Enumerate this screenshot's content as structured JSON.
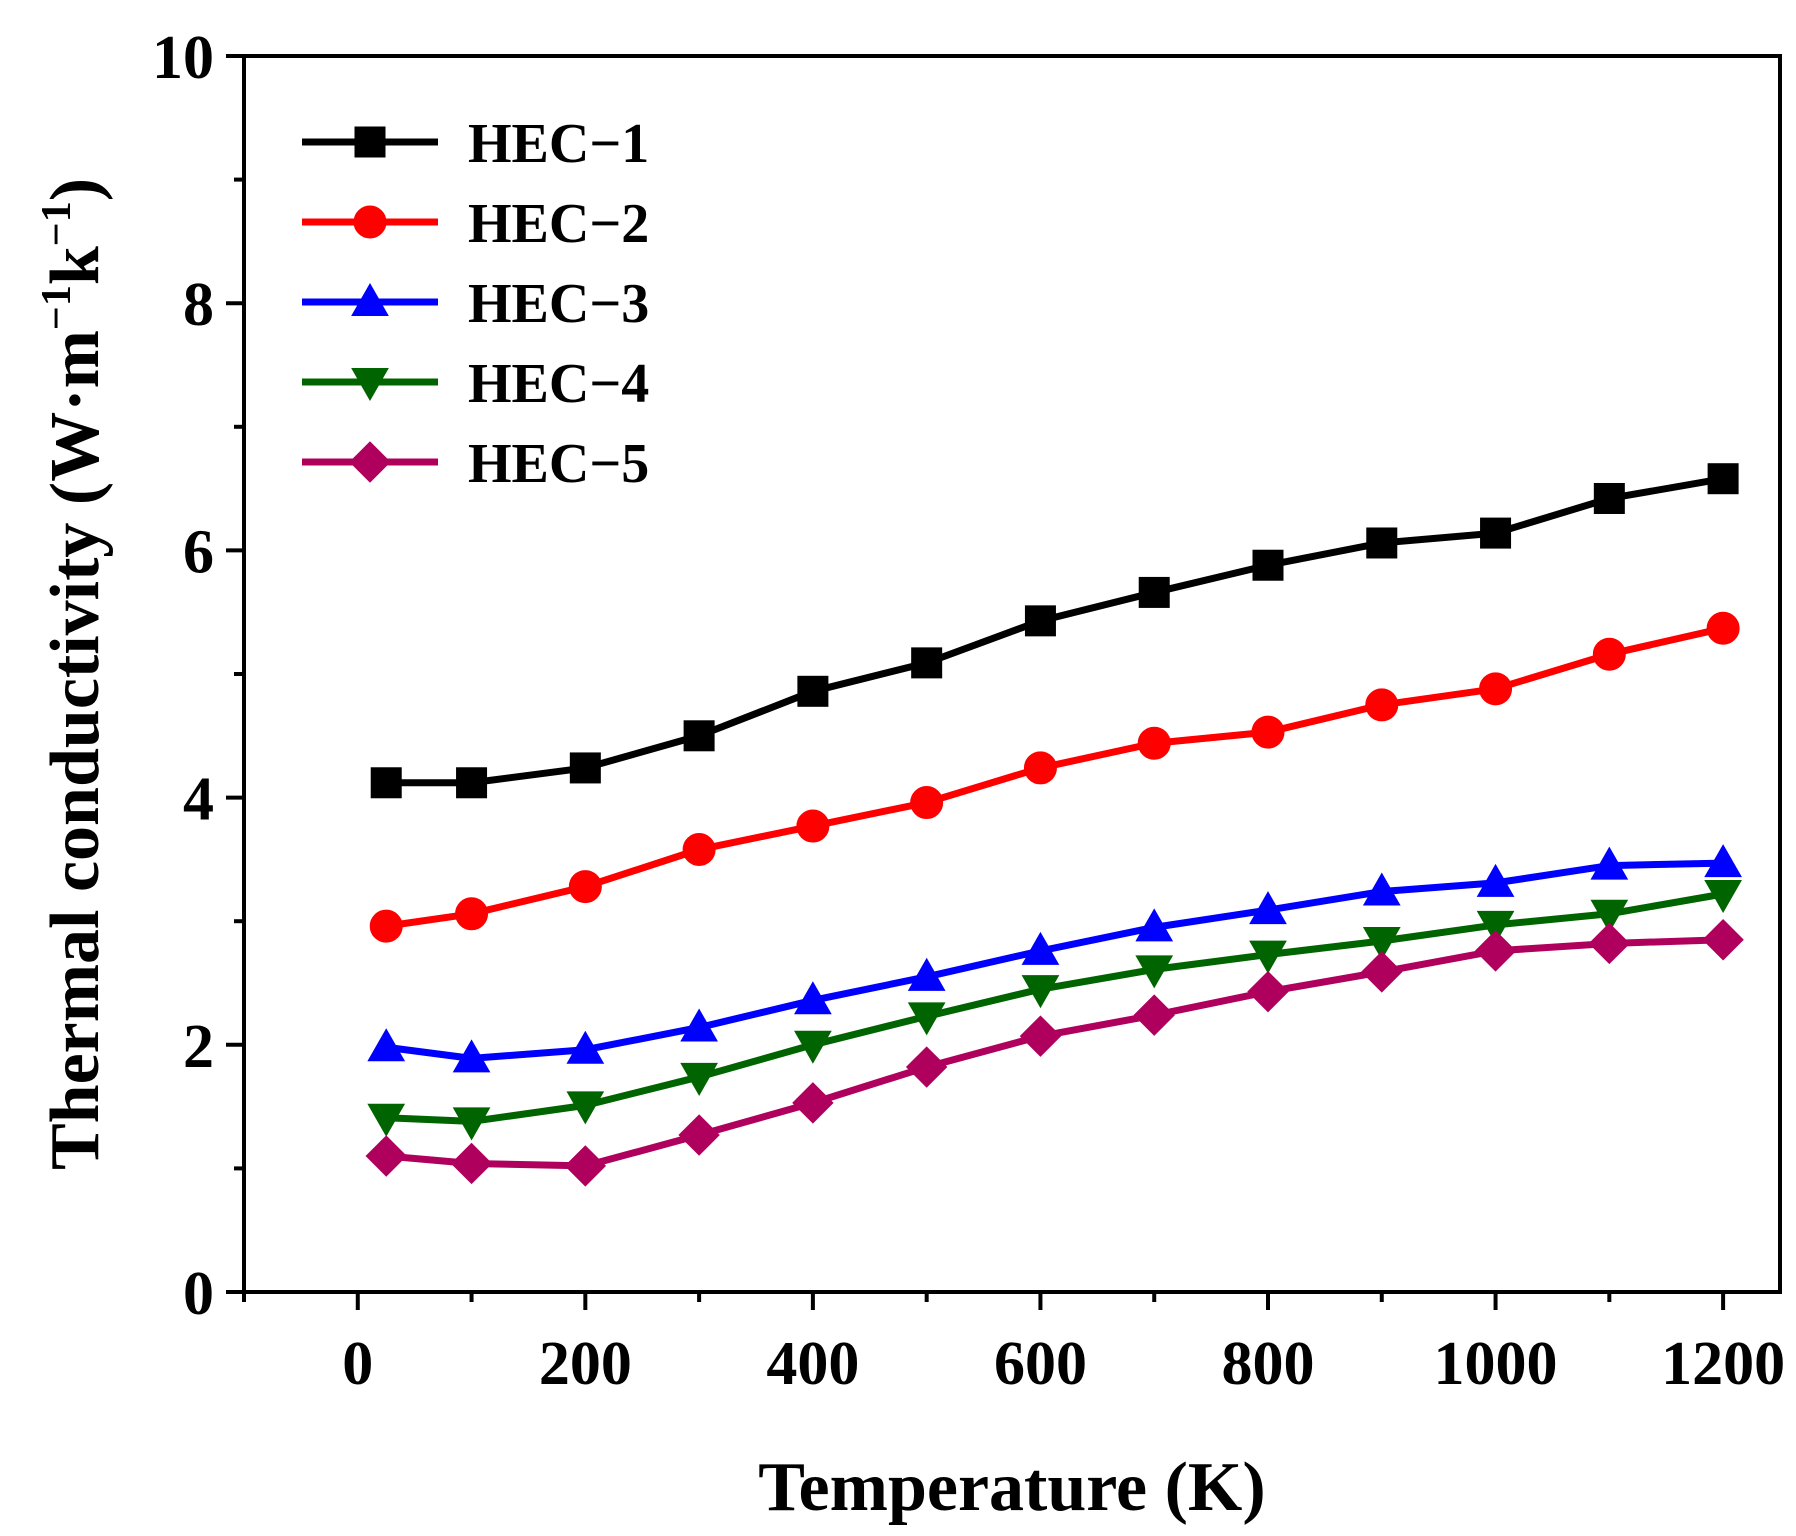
{
  "chart_data": {
    "type": "line",
    "title": "",
    "xlabel": "Temperature (K)",
    "ylabel": {
      "main": "Thermal conductivity (W·m",
      "exp1": "−1",
      "mid": "k",
      "exp2": "−1",
      "close": ")"
    },
    "xlim": [
      -100,
      1250
    ],
    "ylim": [
      0,
      10
    ],
    "xticks": [
      0,
      200,
      400,
      600,
      800,
      1000,
      1200
    ],
    "yticks": [
      0,
      2,
      4,
      6,
      8,
      10
    ],
    "x": [
      25,
      100,
      200,
      300,
      400,
      500,
      600,
      700,
      800,
      900,
      1000,
      1100,
      1200
    ],
    "legend_position": "top-left",
    "series": [
      {
        "name": "HEC−1",
        "color": "#000000",
        "marker": "square",
        "values": [
          4.12,
          4.12,
          4.24,
          4.5,
          4.86,
          5.09,
          5.43,
          5.66,
          5.88,
          6.06,
          6.14,
          6.42,
          6.58
        ]
      },
      {
        "name": "HEC−2",
        "color": "#ff0000",
        "marker": "circle",
        "values": [
          2.96,
          3.06,
          3.28,
          3.58,
          3.77,
          3.96,
          4.24,
          4.44,
          4.53,
          4.75,
          4.88,
          5.16,
          5.37
        ]
      },
      {
        "name": "HEC−3",
        "color": "#0000ff",
        "marker": "triangle-up",
        "values": [
          1.98,
          1.89,
          1.96,
          2.14,
          2.36,
          2.55,
          2.76,
          2.95,
          3.09,
          3.24,
          3.31,
          3.45,
          3.47
        ]
      },
      {
        "name": "HEC−4",
        "color": "#006400",
        "marker": "triangle-down",
        "values": [
          1.41,
          1.38,
          1.51,
          1.74,
          2.0,
          2.23,
          2.45,
          2.61,
          2.73,
          2.84,
          2.97,
          3.06,
          3.22
        ]
      },
      {
        "name": "HEC−5",
        "color": "#b0005e",
        "marker": "diamond",
        "values": [
          1.1,
          1.04,
          1.02,
          1.27,
          1.53,
          1.82,
          2.07,
          2.24,
          2.43,
          2.59,
          2.76,
          2.82,
          2.85
        ]
      }
    ]
  }
}
